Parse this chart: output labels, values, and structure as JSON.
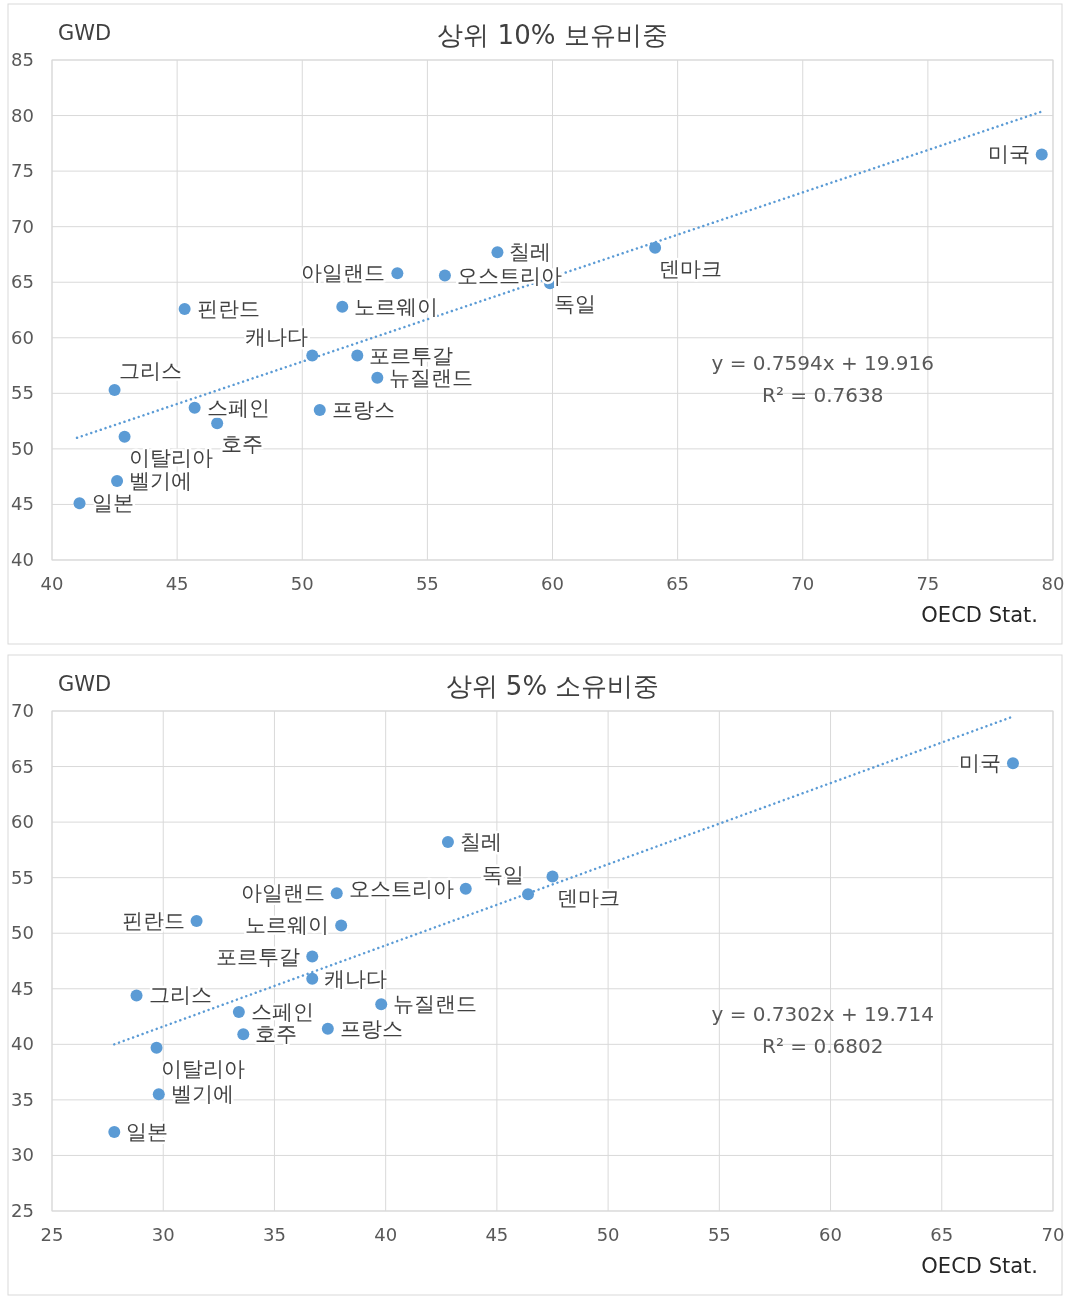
{
  "chart_data": [
    {
      "type": "scatter",
      "title": "상위 10% 보유비중",
      "ylabel": "GWD",
      "xlabel": "OECD Stat.",
      "xlim": [
        40,
        80
      ],
      "ylim": [
        40,
        85
      ],
      "xticks": [
        40,
        45,
        50,
        55,
        60,
        65,
        70,
        75,
        80
      ],
      "yticks": [
        40,
        45,
        50,
        55,
        60,
        65,
        70,
        75,
        80,
        85
      ],
      "grid": true,
      "series": [
        {
          "color": "#5b9bd5",
          "marker": "circle",
          "x": [
            79.55,
            64.1,
            57.8,
            53.8,
            55.7,
            59.9,
            45.3,
            51.6,
            50.4,
            52.2,
            53.0,
            42.5,
            45.7,
            50.7,
            46.6,
            42.9,
            42.6,
            41.1
          ],
          "values": [
            76.5,
            68.1,
            67.7,
            65.8,
            65.6,
            64.9,
            62.6,
            62.8,
            58.4,
            58.4,
            56.4,
            55.3,
            53.7,
            53.5,
            52.3,
            51.1,
            47.1,
            45.1
          ]
        },
        {
          "type": "line",
          "color": "#5b9bd5",
          "line_style": "dotted",
          "x": [
            41.0,
            79.6
          ],
          "values": [
            51,
            80.4
          ]
        }
      ],
      "annotations": [
        {
          "text": "미국",
          "x": 79.55,
          "y": 76.5
        },
        {
          "text": "덴마크",
          "x": 64.1,
          "y": 68.1
        },
        {
          "text": "칠레",
          "x": 57.8,
          "y": 67.7
        },
        {
          "text": "아일랜드",
          "x": 53.8,
          "y": 65.8
        },
        {
          "text": "오스트리아",
          "x": 55.7,
          "y": 65.6
        },
        {
          "text": "독일",
          "x": 59.9,
          "y": 64.9
        },
        {
          "text": "핀란드",
          "x": 45.3,
          "y": 62.6
        },
        {
          "text": "노르웨이",
          "x": 51.6,
          "y": 62.8
        },
        {
          "text": "캐나다",
          "x": 50.4,
          "y": 58.4
        },
        {
          "text": "포르투갈",
          "x": 52.2,
          "y": 58.4
        },
        {
          "text": "뉴질랜드",
          "x": 53.0,
          "y": 56.4
        },
        {
          "text": "그리스",
          "x": 42.5,
          "y": 55.3
        },
        {
          "text": "스페인",
          "x": 45.7,
          "y": 53.7
        },
        {
          "text": "프랑스",
          "x": 50.7,
          "y": 53.5
        },
        {
          "text": "호주",
          "x": 46.6,
          "y": 52.3
        },
        {
          "text": "이탈리아",
          "x": 42.9,
          "y": 51.1
        },
        {
          "text": "벨기에",
          "x": 42.6,
          "y": 47.1
        },
        {
          "text": "일본",
          "x": 41.1,
          "y": 45.1
        },
        "y = 0.7594x + 19.916",
        "R² = 0.7638"
      ]
    },
    {
      "type": "scatter",
      "title": "상위 5% 소유비중",
      "ylabel": "GWD",
      "xlabel": "OECD Stat.",
      "xlim": [
        25,
        70
      ],
      "ylim": [
        25,
        70
      ],
      "xticks": [
        25,
        30,
        35,
        40,
        45,
        50,
        55,
        60,
        65,
        70
      ],
      "yticks": [
        25,
        30,
        35,
        40,
        45,
        50,
        55,
        60,
        65,
        70
      ],
      "grid": true,
      "series": [
        {
          "color": "#5b9bd5",
          "marker": "circle",
          "x": [
            68.2,
            42.8,
            47.5,
            43.6,
            46.4,
            37.8,
            38.0,
            31.5,
            36.7,
            36.7,
            28.8,
            33.4,
            39.8,
            37.4,
            33.6,
            29.7,
            29.8,
            27.8
          ],
          "values": [
            65.3,
            58.2,
            55.1,
            54.0,
            53.5,
            53.6,
            50.7,
            51.1,
            47.9,
            45.9,
            44.4,
            42.9,
            43.6,
            41.4,
            40.9,
            39.7,
            35.5,
            32.1
          ]
        },
        {
          "type": "line",
          "color": "#5b9bd5",
          "line_style": "dotted",
          "x": [
            27.8,
            68.2
          ],
          "values": [
            40,
            69.5
          ]
        }
      ],
      "annotations": [
        {
          "text": "미국",
          "x": 68.2,
          "y": 65.3
        },
        {
          "text": "칠레",
          "x": 42.8,
          "y": 58.2
        },
        {
          "text": "덴마크",
          "x": 47.5,
          "y": 55.1
        },
        {
          "text": "오스트리아",
          "x": 43.6,
          "y": 54.0
        },
        {
          "text": "독일",
          "x": 46.4,
          "y": 53.5
        },
        {
          "text": "아일랜드",
          "x": 37.8,
          "y": 53.6
        },
        {
          "text": "노르웨이",
          "x": 38.0,
          "y": 50.7
        },
        {
          "text": "핀란드",
          "x": 31.5,
          "y": 51.1
        },
        {
          "text": "포르투갈",
          "x": 36.7,
          "y": 47.9
        },
        {
          "text": "캐나다",
          "x": 36.7,
          "y": 45.9
        },
        {
          "text": "그리스",
          "x": 28.8,
          "y": 44.4
        },
        {
          "text": "스페인",
          "x": 33.4,
          "y": 42.9
        },
        {
          "text": "뉴질랜드",
          "x": 39.8,
          "y": 43.6
        },
        {
          "text": "프랑스",
          "x": 37.4,
          "y": 41.4
        },
        {
          "text": "호주",
          "x": 33.6,
          "y": 40.9
        },
        {
          "text": "이탈리아",
          "x": 29.7,
          "y": 39.7
        },
        {
          "text": "벨기에",
          "x": 29.8,
          "y": 35.5
        },
        {
          "text": "일본",
          "x": 27.8,
          "y": 32.1
        },
        "y = 0.7302x + 19.714",
        "R² = 0.6802"
      ]
    }
  ]
}
